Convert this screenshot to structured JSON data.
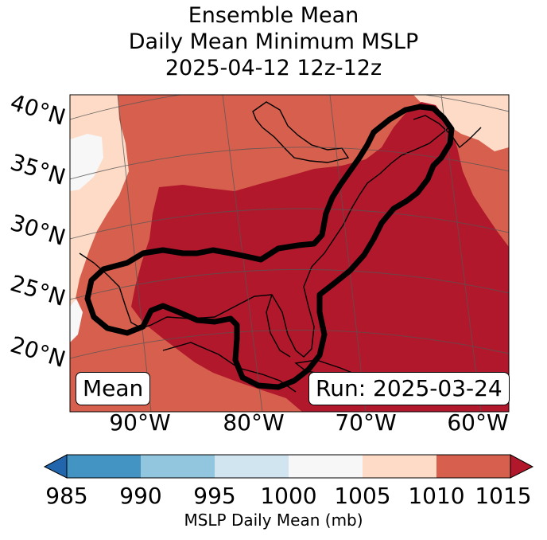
{
  "title": {
    "line1": "Ensemble Mean",
    "line2": "Daily Mean Minimum MSLP",
    "line3": "2025-04-12 12z-12z"
  },
  "map": {
    "latitudes": [
      "40°N",
      "35°N",
      "30°N",
      "25°N",
      "20°N"
    ],
    "longitudes": [
      "90°W",
      "80°W",
      "70°W",
      "60°W"
    ],
    "mean_label": "Mean",
    "run_label": "Run: 2025-03-24"
  },
  "colorbar": {
    "label": "MSLP Daily Mean (mb)",
    "ticks": [
      "985",
      "990",
      "995",
      "1000",
      "1005",
      "1010",
      "1015"
    ],
    "colors": [
      "#2166ac",
      "#4393c3",
      "#92c5de",
      "#d1e5f0",
      "#f7f7f7",
      "#fddbc7",
      "#d6604d",
      "#b2182b"
    ]
  }
}
